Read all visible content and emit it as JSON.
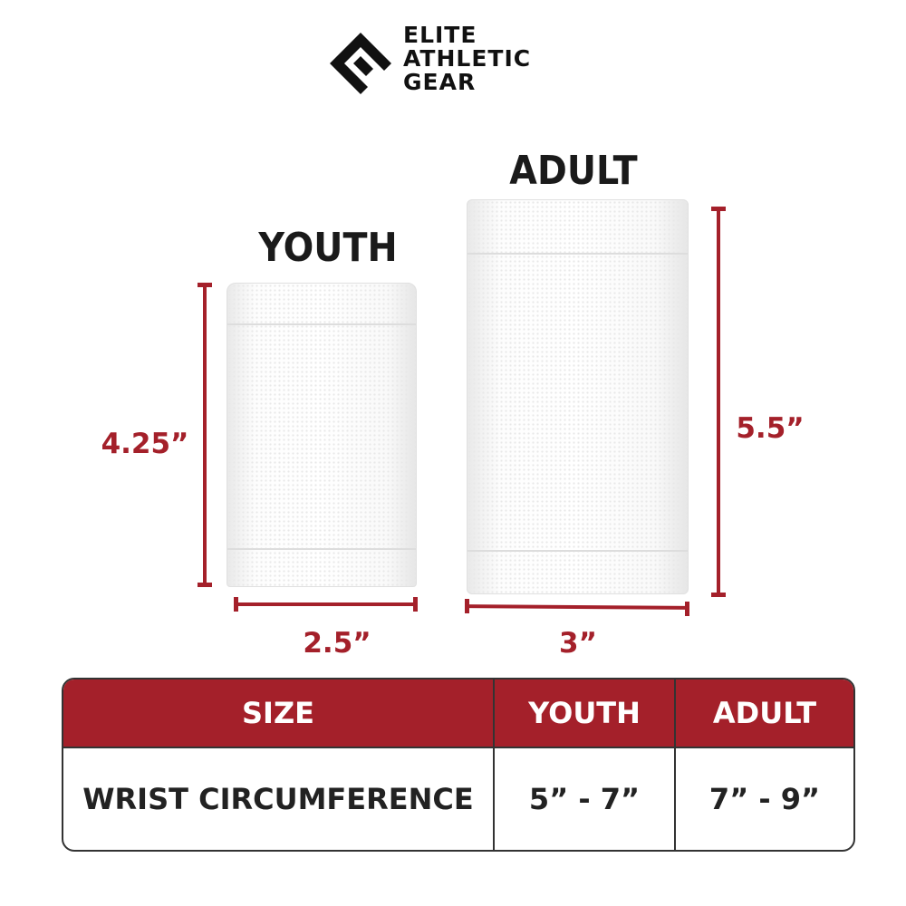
{
  "brand": {
    "name_lines": [
      "ELITE",
      "ATHLETIC",
      "GEAR"
    ],
    "logo_icon": "stylized-e-logo-icon"
  },
  "products": {
    "youth": {
      "label": "YOUTH",
      "height": "4.25”",
      "width": "2.5”"
    },
    "adult": {
      "label": "ADULT",
      "height": "5.5”",
      "width": "3”"
    }
  },
  "size_table": {
    "headers": [
      "SIZE",
      "YOUTH",
      "ADULT"
    ],
    "rows": [
      [
        "WRIST CIRCUMFERENCE",
        "5” - 7”",
        "7” - 9”"
      ]
    ]
  },
  "colors": {
    "accent": "#a4202a",
    "text": "#1a1a1a"
  }
}
